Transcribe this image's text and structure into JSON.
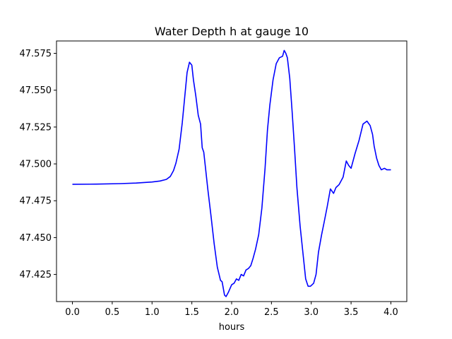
{
  "chart_data": {
    "type": "line",
    "title": "Water Depth h at gauge 10",
    "xlabel": "hours",
    "ylabel": "",
    "xlim": [
      -0.2,
      4.2
    ],
    "ylim": [
      47.4066,
      47.5834
    ],
    "xticks": [
      0.0,
      0.5,
      1.0,
      1.5,
      2.0,
      2.5,
      3.0,
      3.5,
      4.0
    ],
    "xtick_labels": [
      "0.0",
      "0.5",
      "1.0",
      "1.5",
      "2.0",
      "2.5",
      "3.0",
      "3.5",
      "4.0"
    ],
    "yticks": [
      47.425,
      47.45,
      47.475,
      47.5,
      47.525,
      47.55,
      47.575
    ],
    "ytick_labels": [
      "47.425",
      "47.450",
      "47.475",
      "47.500",
      "47.525",
      "47.550",
      "47.575"
    ],
    "grid": false,
    "series": [
      {
        "color": "#0000ff",
        "x": [
          0.0,
          0.3,
          0.6,
          0.8,
          1.0,
          1.1,
          1.18,
          1.23,
          1.27,
          1.3,
          1.34,
          1.38,
          1.41,
          1.44,
          1.47,
          1.5,
          1.52,
          1.55,
          1.58,
          1.61,
          1.63,
          1.65,
          1.67,
          1.7,
          1.74,
          1.78,
          1.82,
          1.86,
          1.88,
          1.91,
          1.93,
          1.96,
          2.0,
          2.03,
          2.06,
          2.09,
          2.12,
          2.15,
          2.18,
          2.21,
          2.24,
          2.27,
          2.3,
          2.34,
          2.38,
          2.42,
          2.45,
          2.48,
          2.52,
          2.56,
          2.6,
          2.64,
          2.66,
          2.68,
          2.7,
          2.73,
          2.76,
          2.79,
          2.82,
          2.86,
          2.9,
          2.93,
          2.96,
          2.99,
          3.03,
          3.06,
          3.09,
          3.13,
          3.16,
          3.2,
          3.24,
          3.28,
          3.31,
          3.35,
          3.4,
          3.44,
          3.47,
          3.5,
          3.55,
          3.6,
          3.65,
          3.7,
          3.74,
          3.77,
          3.79,
          3.82,
          3.85,
          3.88,
          3.92,
          3.95,
          3.98,
          4.0
        ],
        "y": [
          47.4862,
          47.4863,
          47.4866,
          47.487,
          47.4877,
          47.4884,
          47.4895,
          47.4915,
          47.4955,
          47.5005,
          47.51,
          47.528,
          47.545,
          47.562,
          47.569,
          47.567,
          47.557,
          47.546,
          47.533,
          47.527,
          47.511,
          47.508,
          47.498,
          47.483,
          47.465,
          47.446,
          47.43,
          47.421,
          47.42,
          47.411,
          47.41,
          47.413,
          47.418,
          47.419,
          47.422,
          47.421,
          47.425,
          47.424,
          47.428,
          47.429,
          47.431,
          47.436,
          47.442,
          47.452,
          47.47,
          47.497,
          47.523,
          47.54,
          47.557,
          47.568,
          47.572,
          47.573,
          47.577,
          47.575,
          47.572,
          47.558,
          47.535,
          47.51,
          47.484,
          47.458,
          47.437,
          47.422,
          47.417,
          47.417,
          47.419,
          47.425,
          47.44,
          47.452,
          47.46,
          47.471,
          47.483,
          47.48,
          47.484,
          47.486,
          47.491,
          47.502,
          47.499,
          47.497,
          47.507,
          47.516,
          47.527,
          47.529,
          47.526,
          47.52,
          47.512,
          47.504,
          47.499,
          47.496,
          47.497,
          47.496,
          47.496,
          47.496
        ]
      }
    ]
  }
}
